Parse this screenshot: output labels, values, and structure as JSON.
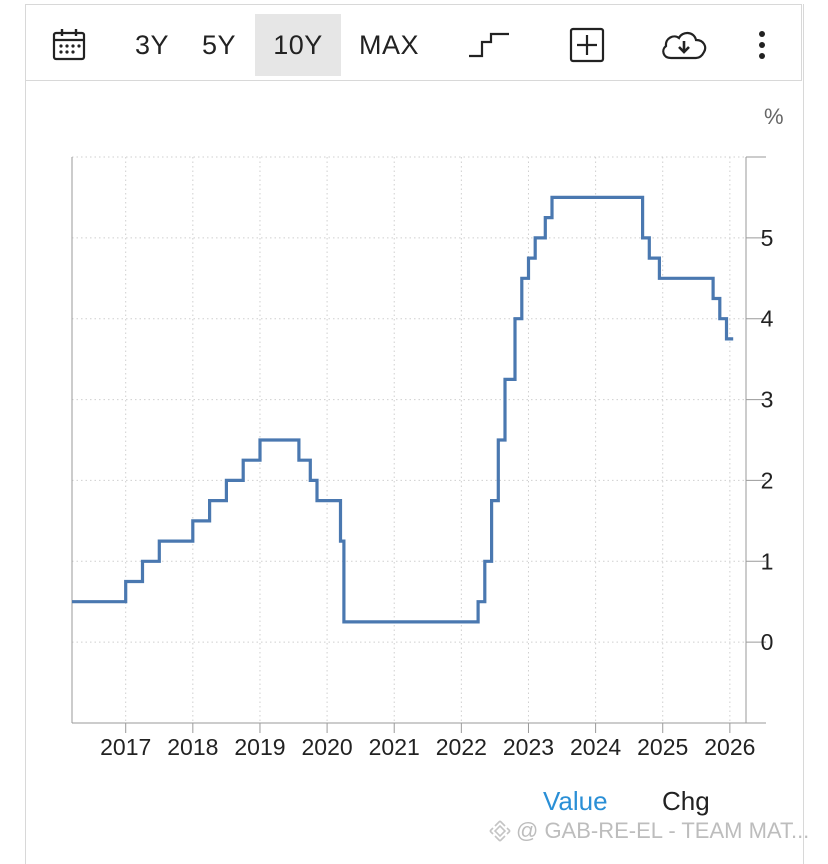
{
  "toolbar": {
    "ranges": [
      "3Y",
      "5Y",
      "10Y",
      "MAX"
    ],
    "active_range": "10Y",
    "icons": [
      "calendar-icon",
      "step-line-icon",
      "add-icon",
      "download-icon",
      "more-vertical-icon"
    ]
  },
  "chart_data": {
    "type": "line",
    "line_style": "step",
    "unit": "%",
    "title": "",
    "xlabel": "",
    "ylabel": "",
    "ylim": [
      -1,
      6
    ],
    "xlim": [
      2016.2,
      2026.3
    ],
    "y_ticks": [
      "0",
      "1",
      "2",
      "3",
      "4",
      "5"
    ],
    "x_ticks": [
      "2017",
      "2018",
      "2019",
      "2020",
      "2021",
      "2022",
      "2023",
      "2024",
      "2025",
      "2026"
    ],
    "grid": true,
    "color": "#4a78b0",
    "series": [
      {
        "x": [
          2016.2,
          2017.0,
          2017.25,
          2017.5,
          2018.0,
          2018.25,
          2018.5,
          2018.75,
          2019.0,
          2019.58,
          2019.75,
          2019.85,
          2020.2,
          2020.25,
          2022.25,
          2022.35,
          2022.45,
          2022.55,
          2022.65,
          2022.8,
          2022.9,
          2023.0,
          2023.1,
          2023.25,
          2023.35,
          2023.55,
          2024.7,
          2024.8,
          2024.95,
          2025.75,
          2025.85,
          2025.95,
          2026.05
        ],
        "y": [
          0.5,
          0.75,
          1.0,
          1.25,
          1.5,
          1.75,
          2.0,
          2.25,
          2.5,
          2.25,
          2.0,
          1.75,
          1.25,
          0.25,
          0.5,
          1.0,
          1.75,
          2.5,
          3.25,
          4.0,
          4.5,
          4.75,
          5.0,
          5.25,
          5.5,
          5.5,
          5.0,
          4.75,
          4.5,
          4.25,
          4.0,
          3.75,
          3.75
        ]
      }
    ]
  },
  "tabs": {
    "value": "Value",
    "chg": "Chg"
  },
  "watermark": "@ GAB-RE-EL - TEAM MAT..."
}
